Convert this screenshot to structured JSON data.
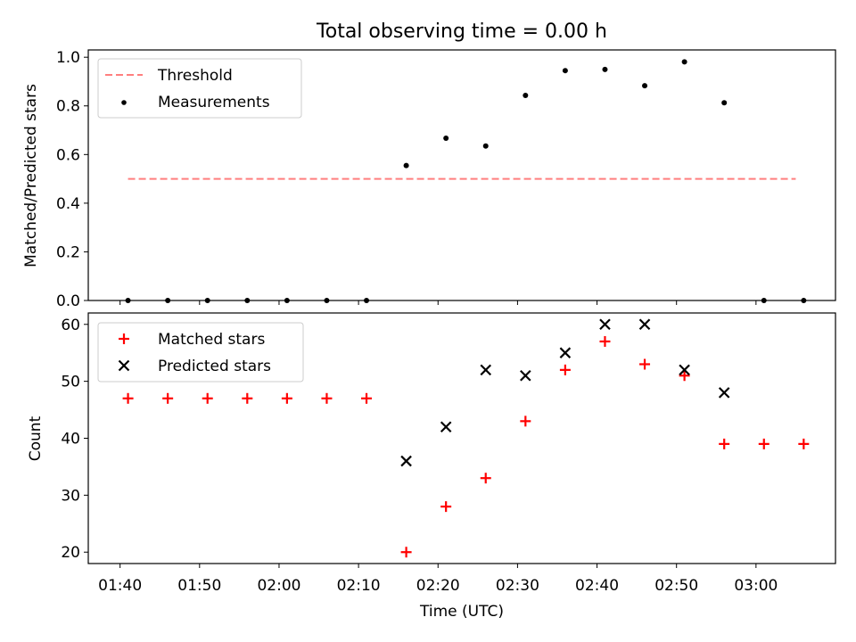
{
  "chart_data": [
    {
      "type": "scatter",
      "title": "Total observing time = 0.00 h",
      "xlabel": "",
      "ylabel": "Matched/Predicted stars",
      "xlim": [
        "01:36",
        "03:10"
      ],
      "ylim": [
        0.0,
        1.03
      ],
      "yticks": [
        0.0,
        0.2,
        0.4,
        0.6,
        0.8,
        1.0
      ],
      "ytick_labels": [
        "0.0",
        "0.2",
        "0.4",
        "0.6",
        "0.8",
        "1.0"
      ],
      "legend_position": "top-left",
      "threshold": {
        "name": "Threshold",
        "value": 0.5,
        "x_start": "01:41",
        "x_end": "03:05",
        "color": "#ff7f7f",
        "style": "dashed"
      },
      "series": [
        {
          "name": "Measurements",
          "marker": "dot",
          "color": "#000000",
          "x": [
            "01:41",
            "01:46",
            "01:51",
            "01:56",
            "02:01",
            "02:06",
            "02:11",
            "02:16",
            "02:21",
            "02:26",
            "02:31",
            "02:36",
            "02:41",
            "02:46",
            "02:51",
            "02:56",
            "03:01",
            "03:06"
          ],
          "values": [
            0.0,
            0.0,
            0.0,
            0.0,
            0.0,
            0.0,
            0.0,
            0.555,
            0.667,
            0.635,
            0.843,
            0.945,
            0.95,
            0.883,
            0.981,
            0.813,
            0.0,
            0.0
          ]
        }
      ]
    },
    {
      "type": "scatter",
      "title": "",
      "xlabel": "Time (UTC)",
      "ylabel": "Count",
      "xlim": [
        "01:36",
        "03:10"
      ],
      "ylim": [
        18,
        62
      ],
      "yticks": [
        20,
        30,
        40,
        50,
        60
      ],
      "ytick_labels": [
        "20",
        "30",
        "40",
        "50",
        "60"
      ],
      "xticks": [
        "01:40",
        "01:50",
        "02:00",
        "02:10",
        "02:20",
        "02:30",
        "02:40",
        "02:50",
        "03:00"
      ],
      "xtick_labels": [
        "01:40",
        "01:50",
        "02:00",
        "02:10",
        "02:20",
        "02:30",
        "02:40",
        "02:50",
        "03:00"
      ],
      "legend_position": "top-left",
      "series": [
        {
          "name": "Matched stars",
          "marker": "plus",
          "color": "#ff0000",
          "x": [
            "01:41",
            "01:46",
            "01:51",
            "01:56",
            "02:01",
            "02:06",
            "02:11",
            "02:16",
            "02:21",
            "02:26",
            "02:31",
            "02:36",
            "02:41",
            "02:46",
            "02:51",
            "02:56",
            "03:01",
            "03:06"
          ],
          "values": [
            47,
            47,
            47,
            47,
            47,
            47,
            47,
            20,
            28,
            33,
            43,
            52,
            57,
            53,
            51,
            39,
            39,
            39
          ]
        },
        {
          "name": "Predicted stars",
          "marker": "x",
          "color": "#000000",
          "x": [
            "02:16",
            "02:21",
            "02:26",
            "02:31",
            "02:36",
            "02:41",
            "02:46",
            "02:51",
            "02:56"
          ],
          "values": [
            36,
            42,
            52,
            51,
            55,
            60,
            60,
            52,
            48
          ]
        }
      ]
    }
  ]
}
